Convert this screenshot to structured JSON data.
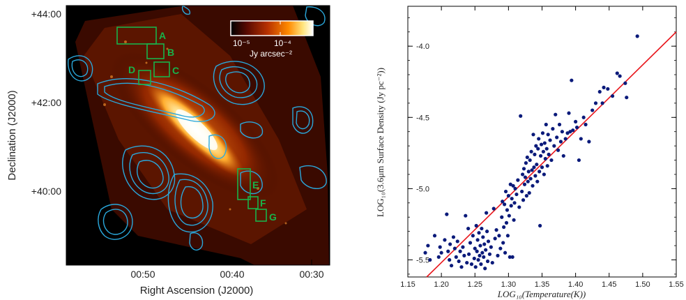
{
  "chart_data": [
    {
      "type": "image",
      "panel": "sky-map",
      "xlabel": "Right Ascension (J2000)",
      "ylabel": "Declination (J2000)",
      "x_ticks": [
        "00:50",
        "00:40",
        "00:30"
      ],
      "y_ticks": [
        "+44:00",
        "+42:00",
        "+40:00"
      ],
      "colorbar": {
        "min_label": "10⁻⁵",
        "mid_label": "10⁻⁴",
        "unit": "Jy arcsec⁻²",
        "colors": [
          "#000000",
          "#5a0a00",
          "#b83200",
          "#ff8a00",
          "#ffe680",
          "#ffffff"
        ]
      },
      "regions": [
        "A",
        "B",
        "C",
        "D",
        "E",
        "F",
        "G"
      ],
      "region_color": "#19b34a",
      "contour_color": "#2aa8dc"
    },
    {
      "type": "scatter",
      "panel": "temperature-surface-density",
      "xlabel": "LOG₁₀(Temperature(K))",
      "ylabel": "LOG₁₀(3.6μm Surface Density (Jy pc⁻²))",
      "xlim": [
        1.15,
        1.55
      ],
      "ylim": [
        -5.62,
        -3.72
      ],
      "x_ticks": [
        1.15,
        1.2,
        1.25,
        1.3,
        1.35,
        1.4,
        1.45,
        1.5,
        1.55
      ],
      "x_tick_labels": [
        "1.15",
        "1.20",
        "1.25",
        "1.30",
        "1.35",
        "1.40",
        "1.45",
        "1.50",
        "1.55"
      ],
      "y_ticks": [
        -5.5,
        -5.0,
        -4.5,
        -4.0
      ],
      "y_tick_labels": [
        "-5.5",
        "-5.0",
        "-4.5",
        "-4.0"
      ],
      "marker_color": "#0a1a7a",
      "fit_line": {
        "x": [
          1.15,
          1.55
        ],
        "y": [
          -5.75,
          -3.9
        ],
        "color": "#e8151b"
      },
      "points": [
        [
          1.176,
          -5.45
        ],
        [
          1.18,
          -5.4
        ],
        [
          1.183,
          -5.5
        ],
        [
          1.19,
          -5.33
        ],
        [
          1.196,
          -5.48
        ],
        [
          1.198,
          -5.41
        ],
        [
          1.2,
          -5.45
        ],
        [
          1.205,
          -5.36
        ],
        [
          1.208,
          -5.18
        ],
        [
          1.21,
          -5.44
        ],
        [
          1.212,
          -5.5
        ],
        [
          1.213,
          -5.39
        ],
        [
          1.215,
          -5.54
        ],
        [
          1.218,
          -5.34
        ],
        [
          1.22,
          -5.42
        ],
        [
          1.222,
          -5.48
        ],
        [
          1.224,
          -5.37
        ],
        [
          1.226,
          -5.51
        ],
        [
          1.228,
          -5.44
        ],
        [
          1.23,
          -5.55
        ],
        [
          1.232,
          -5.41
        ],
        [
          1.234,
          -5.47
        ],
        [
          1.236,
          -5.19
        ],
        [
          1.238,
          -5.52
        ],
        [
          1.24,
          -5.28
        ],
        [
          1.241,
          -5.46
        ],
        [
          1.243,
          -5.38
        ],
        [
          1.245,
          -5.53
        ],
        [
          1.247,
          -5.33
        ],
        [
          1.249,
          -5.49
        ],
        [
          1.25,
          -5.42
        ],
        [
          1.251,
          -5.55
        ],
        [
          1.252,
          -5.26
        ],
        [
          1.253,
          -5.44
        ],
        [
          1.254,
          -5.36
        ],
        [
          1.255,
          -5.5
        ],
        [
          1.256,
          -5.31
        ],
        [
          1.257,
          -5.47
        ],
        [
          1.258,
          -5.4
        ],
        [
          1.259,
          -5.53
        ],
        [
          1.26,
          -5.28
        ],
        [
          1.261,
          -5.45
        ],
        [
          1.262,
          -5.34
        ],
        [
          1.263,
          -5.48
        ],
        [
          1.264,
          -5.39
        ],
        [
          1.265,
          -5.56
        ],
        [
          1.266,
          -5.43
        ],
        [
          1.267,
          -5.17
        ],
        [
          1.268,
          -5.3
        ],
        [
          1.269,
          -5.51
        ],
        [
          1.27,
          -5.37
        ],
        [
          1.272,
          -5.46
        ],
        [
          1.274,
          -5.41
        ],
        [
          1.276,
          -5.52
        ],
        [
          1.278,
          -5.14
        ],
        [
          1.28,
          -5.35
        ],
        [
          1.282,
          -5.29
        ],
        [
          1.284,
          -5.47
        ],
        [
          1.286,
          -5.33
        ],
        [
          1.288,
          -5.42
        ],
        [
          1.29,
          -5.2
        ],
        [
          1.291,
          -5.09
        ],
        [
          1.292,
          -5.38
        ],
        [
          1.293,
          -5.27
        ],
        [
          1.294,
          -5.11
        ],
        [
          1.295,
          -5.45
        ],
        [
          1.296,
          -5.02
        ],
        [
          1.297,
          -5.24
        ],
        [
          1.298,
          -5.15
        ],
        [
          1.299,
          -5.33
        ],
        [
          1.3,
          -5.05
        ],
        [
          1.301,
          -5.19
        ],
        [
          1.302,
          -5.48
        ],
        [
          1.303,
          -4.97
        ],
        [
          1.304,
          -5.12
        ],
        [
          1.305,
          -5.07
        ],
        [
          1.306,
          -5.48
        ],
        [
          1.307,
          -4.98
        ],
        [
          1.308,
          -5.22
        ],
        [
          1.309,
          -5.1
        ],
        [
          1.31,
          -5.0
        ],
        [
          1.312,
          -5.04
        ],
        [
          1.314,
          -4.94
        ],
        [
          1.316,
          -5.13
        ],
        [
          1.318,
          -4.49
        ],
        [
          1.32,
          -5.02
        ],
        [
          1.321,
          -4.9
        ],
        [
          1.322,
          -5.08
        ],
        [
          1.323,
          -4.86
        ],
        [
          1.324,
          -4.97
        ],
        [
          1.325,
          -4.92
        ],
        [
          1.326,
          -4.82
        ],
        [
          1.327,
          -5.05
        ],
        [
          1.328,
          -4.78
        ],
        [
          1.329,
          -4.95
        ],
        [
          1.33,
          -4.88
        ],
        [
          1.331,
          -5.03
        ],
        [
          1.332,
          -4.8
        ],
        [
          1.333,
          -4.93
        ],
        [
          1.334,
          -4.74
        ],
        [
          1.335,
          -4.87
        ],
        [
          1.336,
          -4.98
        ],
        [
          1.337,
          -4.62
        ],
        [
          1.338,
          -4.85
        ],
        [
          1.339,
          -4.76
        ],
        [
          1.34,
          -4.91
        ],
        [
          1.341,
          -4.7
        ],
        [
          1.342,
          -4.83
        ],
        [
          1.343,
          -4.95
        ],
        [
          1.344,
          -4.72
        ],
        [
          1.345,
          -4.65
        ],
        [
          1.346,
          -4.88
        ],
        [
          1.347,
          -5.26
        ],
        [
          1.348,
          -4.77
        ],
        [
          1.349,
          -4.69
        ],
        [
          1.35,
          -4.85
        ],
        [
          1.351,
          -4.61
        ],
        [
          1.352,
          -4.74
        ],
        [
          1.353,
          -4.9
        ],
        [
          1.354,
          -4.68
        ],
        [
          1.355,
          -4.79
        ],
        [
          1.356,
          -4.55
        ],
        [
          1.357,
          -4.72
        ],
        [
          1.358,
          -4.84
        ],
        [
          1.359,
          -4.62
        ],
        [
          1.36,
          -4.76
        ],
        [
          1.362,
          -4.66
        ],
        [
          1.364,
          -4.8
        ],
        [
          1.366,
          -4.58
        ],
        [
          1.368,
          -4.7
        ],
        [
          1.37,
          -4.48
        ],
        [
          1.372,
          -4.64
        ],
        [
          1.374,
          -4.73
        ],
        [
          1.376,
          -4.55
        ],
        [
          1.378,
          -4.67
        ],
        [
          1.38,
          -4.6
        ],
        [
          1.382,
          -4.77
        ],
        [
          1.385,
          -4.65
        ],
        [
          1.388,
          -4.61
        ],
        [
          1.39,
          -4.47
        ],
        [
          1.392,
          -4.6
        ],
        [
          1.394,
          -4.24
        ],
        [
          1.396,
          -4.59
        ],
        [
          1.4,
          -4.53
        ],
        [
          1.402,
          -4.57
        ],
        [
          1.405,
          -4.8
        ],
        [
          1.408,
          -4.65
        ],
        [
          1.412,
          -4.5
        ],
        [
          1.415,
          -4.55
        ],
        [
          1.42,
          -4.67
        ],
        [
          1.425,
          -4.45
        ],
        [
          1.43,
          -4.4
        ],
        [
          1.436,
          -4.32
        ],
        [
          1.44,
          -4.4
        ],
        [
          1.442,
          -4.29
        ],
        [
          1.448,
          -4.3
        ],
        [
          1.455,
          -4.35
        ],
        [
          1.462,
          -4.19
        ],
        [
          1.466,
          -4.21
        ],
        [
          1.474,
          -4.26
        ],
        [
          1.476,
          -4.36
        ],
        [
          1.492,
          -3.93
        ]
      ]
    }
  ]
}
